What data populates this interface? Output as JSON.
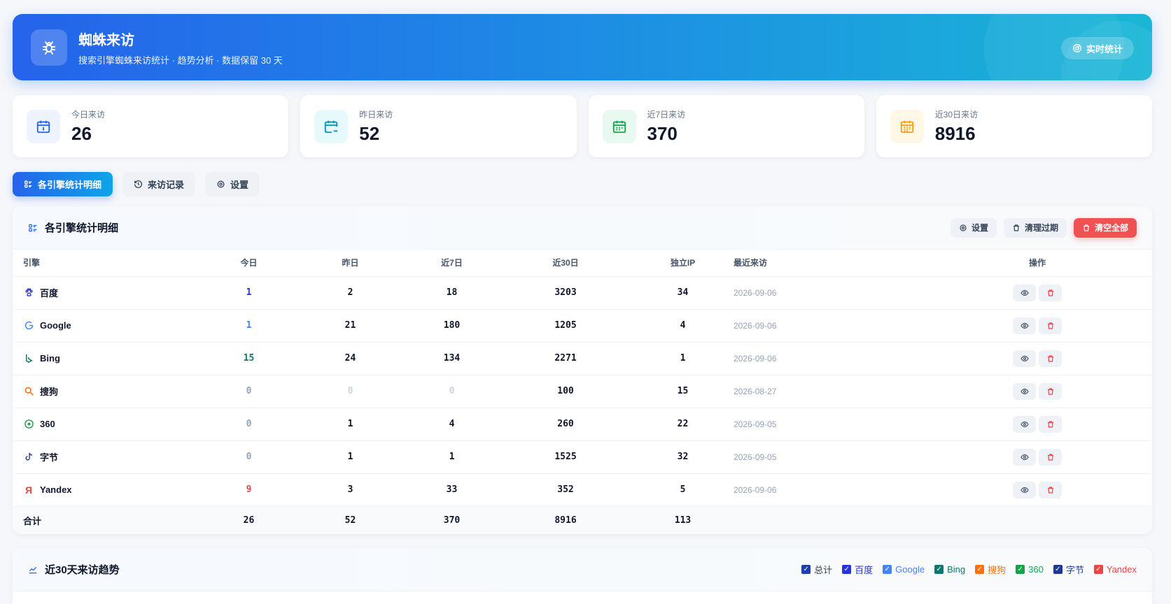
{
  "header": {
    "title": "蜘蛛来访",
    "subtitle": "搜索引擎蜘蛛来访统计 · 趋势分析 · 数据保留 30 天",
    "live_button": "实时统计"
  },
  "stats": [
    {
      "label": "今日来访",
      "value": "26",
      "color": "#2563eb",
      "bg": "#eef4ff",
      "icon": "calendar-today-icon"
    },
    {
      "label": "昨日来访",
      "value": "52",
      "color": "#0891b2",
      "bg": "#e6fafc",
      "icon": "calendar-minus-icon"
    },
    {
      "label": "近7日来访",
      "value": "370",
      "color": "#16a34a",
      "bg": "#e8f9ef",
      "icon": "calendar-week-icon"
    },
    {
      "label": "近30日来访",
      "value": "8916",
      "color": "#f59e0b",
      "bg": "#fff8e6",
      "icon": "calendar-month-icon"
    }
  ],
  "tabs": [
    {
      "label": "各引擎统计明细",
      "active": true
    },
    {
      "label": "来访记录",
      "active": false
    },
    {
      "label": "设置",
      "active": false
    }
  ],
  "panel": {
    "title": "各引擎统计明细",
    "settings_button": "设置",
    "clean_button": "清理过期",
    "clear_all_button": "清空全部"
  },
  "table": {
    "headers": {
      "engine": "引擎",
      "today": "今日",
      "yesterday": "昨日",
      "week": "近7日",
      "month": "近30日",
      "ip": "独立IP",
      "last": "最近来访",
      "ops": "操作"
    },
    "rows": [
      {
        "engine": "百度",
        "color": "#2932e1",
        "today": "1",
        "yesterday": "2",
        "week": "18",
        "month": "3203",
        "ip": "34",
        "last": "2026-09-06"
      },
      {
        "engine": "Google",
        "color": "#4285f4",
        "today": "1",
        "yesterday": "21",
        "week": "180",
        "month": "1205",
        "ip": "4",
        "last": "2026-09-06"
      },
      {
        "engine": "Bing",
        "color": "#0f766e",
        "today": "15",
        "yesterday": "24",
        "week": "134",
        "month": "2271",
        "ip": "1",
        "last": "2026-09-06"
      },
      {
        "engine": "搜狗",
        "color": "#f97316",
        "today": "0",
        "yesterday": "0",
        "week": "0",
        "month": "100",
        "ip": "15",
        "last": "2026-08-27"
      },
      {
        "engine": "360",
        "color": "#16a34a",
        "today": "0",
        "yesterday": "1",
        "week": "4",
        "month": "260",
        "ip": "22",
        "last": "2026-09-05"
      },
      {
        "engine": "字节",
        "color": "#1e3a8a",
        "today": "0",
        "yesterday": "1",
        "week": "1",
        "month": "1525",
        "ip": "32",
        "last": "2026-09-05"
      },
      {
        "engine": "Yandex",
        "color": "#ef4444",
        "today": "9",
        "yesterday": "3",
        "week": "33",
        "month": "352",
        "ip": "5",
        "last": "2026-09-06"
      }
    ],
    "total": {
      "label": "合计",
      "today": "26",
      "yesterday": "52",
      "week": "370",
      "month": "8916",
      "ip": "113"
    }
  },
  "trend": {
    "title": "近30天来访趋势",
    "legend": [
      {
        "label": "总计",
        "color": "#1e40af"
      },
      {
        "label": "百度",
        "color": "#2932e1"
      },
      {
        "label": "Google",
        "color": "#4285f4"
      },
      {
        "label": "Bing",
        "color": "#0f766e"
      },
      {
        "label": "搜狗",
        "color": "#f97316"
      },
      {
        "label": "360",
        "color": "#16a34a"
      },
      {
        "label": "字节",
        "color": "#1e3a8a"
      },
      {
        "label": "Yandex",
        "color": "#ef4444"
      }
    ]
  }
}
